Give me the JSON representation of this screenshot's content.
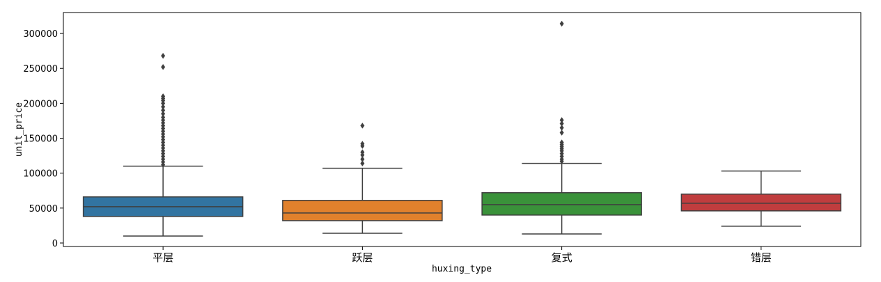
{
  "chart_data": {
    "type": "box",
    "xlabel": "huxing_type",
    "ylabel": "unit_price",
    "ylim": [
      -5000,
      330000
    ],
    "yticks": [
      0,
      50000,
      100000,
      150000,
      200000,
      250000,
      300000
    ],
    "yticklabels": [
      "0",
      "50000",
      "100000",
      "150000",
      "200000",
      "250000",
      "300000"
    ],
    "grid": false,
    "categories": [
      "平层",
      "跃层",
      "复式",
      "错层"
    ],
    "boxes": [
      {
        "category": "平层",
        "color": "#3274a1",
        "whisker_low": 10000,
        "q1": 38000,
        "median": 52000,
        "q3": 66000,
        "whisker_high": 110000,
        "outliers": [
          268000,
          252000,
          210000,
          207000,
          204000,
          200000,
          195000,
          190000,
          185000,
          180000,
          176000,
          172000,
          168000,
          164000,
          160000,
          156000,
          152000,
          148000,
          144000,
          140000,
          136000,
          132000,
          128000,
          124000,
          120000,
          116000,
          112000
        ]
      },
      {
        "category": "跃层",
        "color": "#e1812c",
        "whisker_low": 14000,
        "q1": 32000,
        "median": 43000,
        "q3": 61000,
        "whisker_high": 107000,
        "outliers": [
          168000,
          142000,
          139000,
          130000,
          126000,
          120000,
          114000
        ]
      },
      {
        "category": "复式",
        "color": "#3a923a",
        "whisker_low": 13000,
        "q1": 40000,
        "median": 55000,
        "q3": 72000,
        "whisker_high": 114000,
        "outliers": [
          314000,
          176000,
          171000,
          165000,
          158000,
          144000,
          141000,
          138000,
          135000,
          132000,
          128000,
          124000,
          120000,
          117000
        ]
      },
      {
        "category": "错层",
        "color": "#c03d3e",
        "whisker_low": 24000,
        "q1": 46000,
        "median": 57000,
        "q3": 70000,
        "whisker_high": 103000,
        "outliers": []
      }
    ]
  }
}
